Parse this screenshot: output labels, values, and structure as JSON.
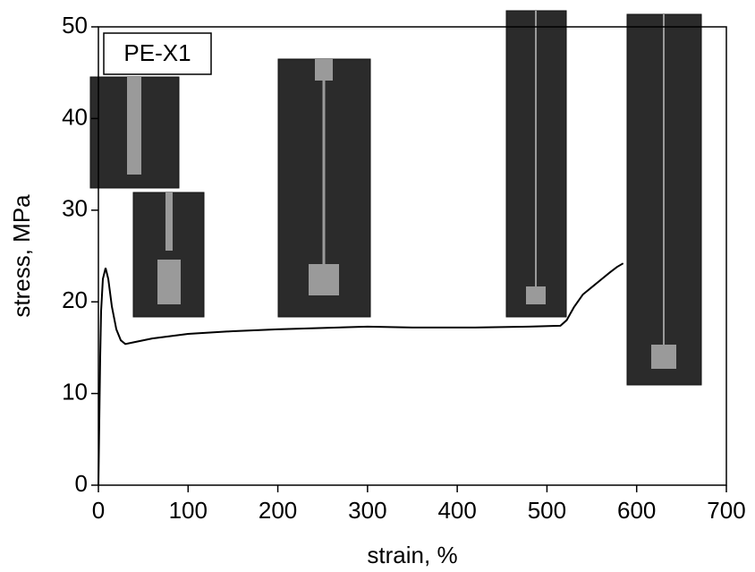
{
  "chart_data": {
    "type": "line",
    "x_label": "strain, %",
    "y_label": "stress, MPa",
    "annotation": "PE-X1",
    "xlim": [
      0,
      700
    ],
    "ylim": [
      0,
      50
    ],
    "xticks": [
      0,
      100,
      200,
      300,
      400,
      500,
      600,
      700
    ],
    "yticks": [
      0,
      10,
      20,
      30,
      40,
      50
    ],
    "series": [
      {
        "name": "PE-X1",
        "color": "#000000",
        "x": [
          0,
          1,
          2,
          3,
          5,
          8,
          11,
          15,
          20,
          25,
          30,
          40,
          60,
          100,
          150,
          200,
          300,
          350,
          420,
          480,
          515,
          522,
          530,
          540,
          550,
          560,
          570,
          578,
          585
        ],
        "values": [
          0,
          7,
          14,
          19,
          22.5,
          23.7,
          22.5,
          19.5,
          17,
          15.8,
          15.4,
          15.6,
          16,
          16.5,
          16.8,
          17,
          17.3,
          17.2,
          17.2,
          17.3,
          17.4,
          18,
          19.4,
          20.8,
          21.6,
          22.4,
          23.2,
          23.8,
          24.2
        ]
      }
    ]
  }
}
